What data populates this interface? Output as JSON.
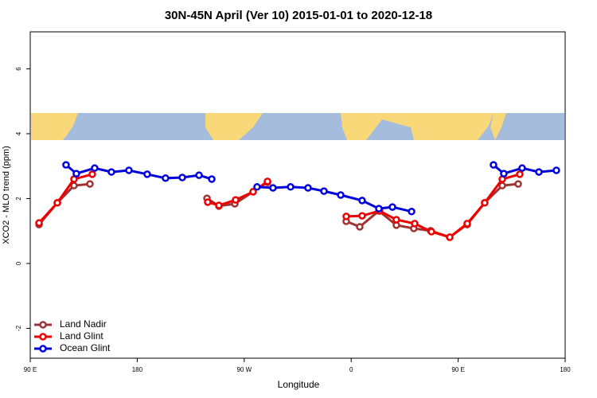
{
  "chart_data": {
    "type": "line",
    "title": "30N-45N April (Ver 10)   2015-01-01 to 2020-12-18",
    "x_label": "Longitude",
    "y_label": "XCO2 - MLO trend (ppm)",
    "xlim": [
      90,
      540
    ],
    "xticks": [
      {
        "value": 90,
        "label": "90 E"
      },
      180,
      {
        "value": 270,
        "label": "90 W"
      },
      {
        "value": 360,
        "label": "0"
      },
      {
        "value": 450,
        "label": "90 E"
      },
      {
        "value": 540,
        "label": "180"
      }
    ],
    "ylim": [
      -2.92,
      7.14
    ],
    "yticks": [
      -2,
      0,
      2,
      4,
      6
    ],
    "legend": "bottom-left",
    "series": [
      {
        "name": "Land Nadir",
        "color": "#a03232",
        "x": [
          97.4,
          112.8,
          126.8,
          140.2,
          null,
          238.7,
          248.7,
          262.1,
          277.5,
          289.6,
          null,
          355.8,
          367.2,
          383.3,
          398.0,
          412.7,
          426.8,
          442.9,
          457.6,
          472.3,
          487.1,
          500.5
        ],
        "values": [
          1.2,
          1.87,
          2.4,
          2.45,
          null,
          2.01,
          1.77,
          1.84,
          2.21,
          2.5,
          null,
          1.3,
          1.13,
          1.62,
          1.18,
          1.08,
          1.01,
          0.81,
          1.2,
          1.87,
          2.4,
          2.45
        ]
      },
      {
        "name": "Land Glint",
        "color": "#ee0000",
        "x": [
          97.4,
          112.8,
          126.8,
          142.2,
          null,
          239.3,
          248.7,
          262.8,
          277.5,
          289.6,
          null,
          355.8,
          369.2,
          383.9,
          398.0,
          413.4,
          427.5,
          442.9,
          457.6,
          472.3,
          487.1,
          501.8
        ],
        "values": [
          1.25,
          1.87,
          2.6,
          2.75,
          null,
          1.89,
          1.79,
          1.96,
          2.21,
          2.53,
          null,
          1.45,
          1.47,
          1.62,
          1.35,
          1.23,
          0.98,
          0.81,
          1.23,
          1.87,
          2.6,
          2.75
        ]
      },
      {
        "name": "Ocean Glint",
        "color": "#0000dd",
        "x": [
          120.1,
          128.8,
          144.2,
          158.3,
          173.0,
          188.4,
          203.8,
          217.9,
          232.0,
          242.7,
          null,
          280.8,
          294.2,
          309.0,
          323.7,
          337.1,
          351.2,
          369.2,
          383.3,
          394.7,
          410.8,
          null,
          479.7,
          488.4,
          503.8,
          517.9,
          532.6
        ],
        "values": [
          3.04,
          2.77,
          2.94,
          2.82,
          2.87,
          2.75,
          2.63,
          2.65,
          2.72,
          2.6,
          null,
          2.36,
          2.33,
          2.36,
          2.33,
          2.23,
          2.11,
          1.94,
          1.69,
          1.74,
          1.6,
          null,
          3.04,
          2.77,
          2.94,
          2.82,
          2.87
        ]
      }
    ]
  }
}
